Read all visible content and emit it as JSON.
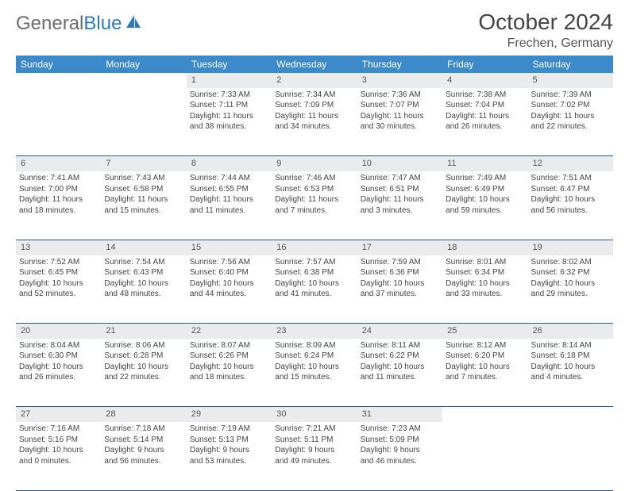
{
  "brand": {
    "part1": "General",
    "part2": "Blue"
  },
  "title": "October 2024",
  "location": "Frechen, Germany",
  "colors": {
    "header_bg": "#3c8ac9",
    "header_text": "#ffffff",
    "daynum_bg": "#e9ebed",
    "row_border": "#2c5a84",
    "brand_gray": "#6b6b6b",
    "brand_blue": "#2c79bf",
    "body_text": "#444444",
    "background": "#ffffff"
  },
  "typography": {
    "title_fontsize": 28,
    "location_fontsize": 16,
    "dayheader_fontsize": 12,
    "cell_fontsize": 10
  },
  "day_headers": [
    "Sunday",
    "Monday",
    "Tuesday",
    "Wednesday",
    "Thursday",
    "Friday",
    "Saturday"
  ],
  "weeks": [
    {
      "nums": [
        "",
        "",
        "1",
        "2",
        "3",
        "4",
        "5"
      ],
      "cells": [
        null,
        null,
        {
          "sunrise": "Sunrise: 7:33 AM",
          "sunset": "Sunset: 7:11 PM",
          "day1": "Daylight: 11 hours",
          "day2": "and 38 minutes."
        },
        {
          "sunrise": "Sunrise: 7:34 AM",
          "sunset": "Sunset: 7:09 PM",
          "day1": "Daylight: 11 hours",
          "day2": "and 34 minutes."
        },
        {
          "sunrise": "Sunrise: 7:36 AM",
          "sunset": "Sunset: 7:07 PM",
          "day1": "Daylight: 11 hours",
          "day2": "and 30 minutes."
        },
        {
          "sunrise": "Sunrise: 7:38 AM",
          "sunset": "Sunset: 7:04 PM",
          "day1": "Daylight: 11 hours",
          "day2": "and 26 minutes."
        },
        {
          "sunrise": "Sunrise: 7:39 AM",
          "sunset": "Sunset: 7:02 PM",
          "day1": "Daylight: 11 hours",
          "day2": "and 22 minutes."
        }
      ]
    },
    {
      "nums": [
        "6",
        "7",
        "8",
        "9",
        "10",
        "11",
        "12"
      ],
      "cells": [
        {
          "sunrise": "Sunrise: 7:41 AM",
          "sunset": "Sunset: 7:00 PM",
          "day1": "Daylight: 11 hours",
          "day2": "and 18 minutes."
        },
        {
          "sunrise": "Sunrise: 7:43 AM",
          "sunset": "Sunset: 6:58 PM",
          "day1": "Daylight: 11 hours",
          "day2": "and 15 minutes."
        },
        {
          "sunrise": "Sunrise: 7:44 AM",
          "sunset": "Sunset: 6:55 PM",
          "day1": "Daylight: 11 hours",
          "day2": "and 11 minutes."
        },
        {
          "sunrise": "Sunrise: 7:46 AM",
          "sunset": "Sunset: 6:53 PM",
          "day1": "Daylight: 11 hours",
          "day2": "and 7 minutes."
        },
        {
          "sunrise": "Sunrise: 7:47 AM",
          "sunset": "Sunset: 6:51 PM",
          "day1": "Daylight: 11 hours",
          "day2": "and 3 minutes."
        },
        {
          "sunrise": "Sunrise: 7:49 AM",
          "sunset": "Sunset: 6:49 PM",
          "day1": "Daylight: 10 hours",
          "day2": "and 59 minutes."
        },
        {
          "sunrise": "Sunrise: 7:51 AM",
          "sunset": "Sunset: 6:47 PM",
          "day1": "Daylight: 10 hours",
          "day2": "and 56 minutes."
        }
      ]
    },
    {
      "nums": [
        "13",
        "14",
        "15",
        "16",
        "17",
        "18",
        "19"
      ],
      "cells": [
        {
          "sunrise": "Sunrise: 7:52 AM",
          "sunset": "Sunset: 6:45 PM",
          "day1": "Daylight: 10 hours",
          "day2": "and 52 minutes."
        },
        {
          "sunrise": "Sunrise: 7:54 AM",
          "sunset": "Sunset: 6:43 PM",
          "day1": "Daylight: 10 hours",
          "day2": "and 48 minutes."
        },
        {
          "sunrise": "Sunrise: 7:56 AM",
          "sunset": "Sunset: 6:40 PM",
          "day1": "Daylight: 10 hours",
          "day2": "and 44 minutes."
        },
        {
          "sunrise": "Sunrise: 7:57 AM",
          "sunset": "Sunset: 6:38 PM",
          "day1": "Daylight: 10 hours",
          "day2": "and 41 minutes."
        },
        {
          "sunrise": "Sunrise: 7:59 AM",
          "sunset": "Sunset: 6:36 PM",
          "day1": "Daylight: 10 hours",
          "day2": "and 37 minutes."
        },
        {
          "sunrise": "Sunrise: 8:01 AM",
          "sunset": "Sunset: 6:34 PM",
          "day1": "Daylight: 10 hours",
          "day2": "and 33 minutes."
        },
        {
          "sunrise": "Sunrise: 8:02 AM",
          "sunset": "Sunset: 6:32 PM",
          "day1": "Daylight: 10 hours",
          "day2": "and 29 minutes."
        }
      ]
    },
    {
      "nums": [
        "20",
        "21",
        "22",
        "23",
        "24",
        "25",
        "26"
      ],
      "cells": [
        {
          "sunrise": "Sunrise: 8:04 AM",
          "sunset": "Sunset: 6:30 PM",
          "day1": "Daylight: 10 hours",
          "day2": "and 26 minutes."
        },
        {
          "sunrise": "Sunrise: 8:06 AM",
          "sunset": "Sunset: 6:28 PM",
          "day1": "Daylight: 10 hours",
          "day2": "and 22 minutes."
        },
        {
          "sunrise": "Sunrise: 8:07 AM",
          "sunset": "Sunset: 6:26 PM",
          "day1": "Daylight: 10 hours",
          "day2": "and 18 minutes."
        },
        {
          "sunrise": "Sunrise: 8:09 AM",
          "sunset": "Sunset: 6:24 PM",
          "day1": "Daylight: 10 hours",
          "day2": "and 15 minutes."
        },
        {
          "sunrise": "Sunrise: 8:11 AM",
          "sunset": "Sunset: 6:22 PM",
          "day1": "Daylight: 10 hours",
          "day2": "and 11 minutes."
        },
        {
          "sunrise": "Sunrise: 8:12 AM",
          "sunset": "Sunset: 6:20 PM",
          "day1": "Daylight: 10 hours",
          "day2": "and 7 minutes."
        },
        {
          "sunrise": "Sunrise: 8:14 AM",
          "sunset": "Sunset: 6:18 PM",
          "day1": "Daylight: 10 hours",
          "day2": "and 4 minutes."
        }
      ]
    },
    {
      "nums": [
        "27",
        "28",
        "29",
        "30",
        "31",
        "",
        ""
      ],
      "cells": [
        {
          "sunrise": "Sunrise: 7:16 AM",
          "sunset": "Sunset: 5:16 PM",
          "day1": "Daylight: 10 hours",
          "day2": "and 0 minutes."
        },
        {
          "sunrise": "Sunrise: 7:18 AM",
          "sunset": "Sunset: 5:14 PM",
          "day1": "Daylight: 9 hours",
          "day2": "and 56 minutes."
        },
        {
          "sunrise": "Sunrise: 7:19 AM",
          "sunset": "Sunset: 5:13 PM",
          "day1": "Daylight: 9 hours",
          "day2": "and 53 minutes."
        },
        {
          "sunrise": "Sunrise: 7:21 AM",
          "sunset": "Sunset: 5:11 PM",
          "day1": "Daylight: 9 hours",
          "day2": "and 49 minutes."
        },
        {
          "sunrise": "Sunrise: 7:23 AM",
          "sunset": "Sunset: 5:09 PM",
          "day1": "Daylight: 9 hours",
          "day2": "and 46 minutes."
        },
        null,
        null
      ]
    }
  ]
}
